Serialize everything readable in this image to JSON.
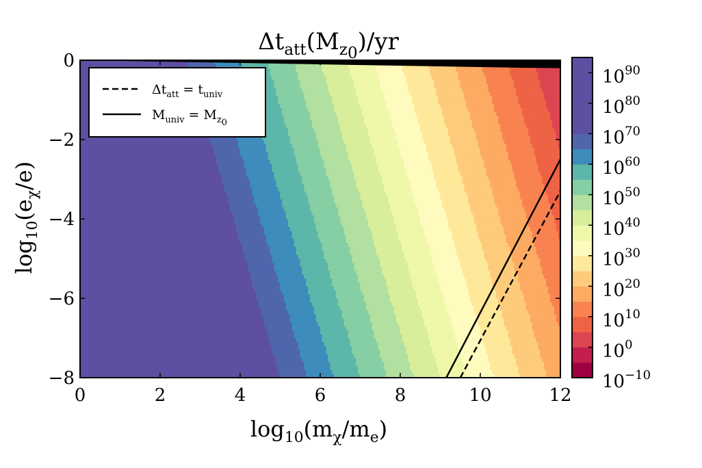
{
  "chart_data": {
    "type": "heatmap",
    "title": {
      "main": "Δt",
      "sub": "att",
      "mid": "(M",
      "sub2": "z",
      "sub2sub": "0",
      "tail": ")/yr"
    },
    "xlabel": {
      "pre": "log",
      "sub": "10",
      "mid": "(m",
      "sub2": "χ",
      "mid2": "/m",
      "sub3": "e",
      "tail": ")"
    },
    "ylabel": {
      "pre": "log",
      "sub": "10",
      "mid": "(e",
      "sub2": "χ",
      "tail": "/e)"
    },
    "xlim": [
      0,
      12
    ],
    "ylim": [
      -8,
      0
    ],
    "xticks": [
      {
        "value": 0,
        "label": "0"
      },
      {
        "value": 2,
        "label": "2"
      },
      {
        "value": 4,
        "label": "4"
      },
      {
        "value": 6,
        "label": "6"
      },
      {
        "value": 8,
        "label": "8"
      },
      {
        "value": 10,
        "label": "10"
      },
      {
        "value": 12,
        "label": "12"
      }
    ],
    "yticks": [
      {
        "value": 0,
        "label": "0"
      },
      {
        "value": -2,
        "label": "−2"
      },
      {
        "value": -4,
        "label": "−4"
      },
      {
        "value": -6,
        "label": "−6"
      },
      {
        "value": -8,
        "label": "−8"
      }
    ],
    "colorbar": {
      "scale": "log",
      "range_exponent": [
        -10,
        95
      ],
      "level_step": 5,
      "ticks": [
        {
          "exp": 90,
          "base": "10",
          "label": "90"
        },
        {
          "exp": 80,
          "base": "10",
          "label": "80"
        },
        {
          "exp": 70,
          "base": "10",
          "label": "70"
        },
        {
          "exp": 60,
          "base": "10",
          "label": "60"
        },
        {
          "exp": 50,
          "base": "10",
          "label": "50"
        },
        {
          "exp": 40,
          "base": "10",
          "label": "40"
        },
        {
          "exp": 30,
          "base": "10",
          "label": "30"
        },
        {
          "exp": 20,
          "base": "10",
          "label": "20"
        },
        {
          "exp": 10,
          "base": "10",
          "label": "10"
        },
        {
          "exp": 0,
          "base": "10",
          "label": "0"
        },
        {
          "exp": -10,
          "base": "10",
          "label": "−10"
        }
      ],
      "colors": [
        "#9e0142",
        "#c31e4c",
        "#dc4552",
        "#ee6245",
        "#f88350",
        "#fdab62",
        "#fdcb7b",
        "#fee89a",
        "#fffbbf",
        "#eff8a9",
        "#d8ee9b",
        "#b2e0a0",
        "#86cfa4",
        "#5cb7aa",
        "#3d8cbc",
        "#4f66ad",
        "#5e4fa2"
      ]
    },
    "field_model": "log10(Δt_att/yr) ≈ 90 − 7.5·log10(mχ/me) − 2.2·log10(eχ/e)",
    "excluded_region_color": "#000000",
    "lines": [
      {
        "name": "Δt_att = t_univ",
        "style": "dashed",
        "x": [
          9.5,
          12
        ],
        "y": [
          -8,
          -3.3
        ]
      },
      {
        "name": "M_univ = M_z0",
        "style": "solid",
        "x": [
          9.15,
          12
        ],
        "y": [
          -8,
          -2.5
        ]
      }
    ],
    "legend": {
      "position": "top-left",
      "entries": [
        {
          "style": "dashed",
          "lhs": "Δt",
          "lhs_sub": "att",
          "eq": " = t",
          "rhs_sub": "univ"
        },
        {
          "style": "solid",
          "lhs": "M",
          "lhs_sub": "univ",
          "eq": " = M",
          "rhs_sub": "z",
          "rhs_subsub": "0"
        }
      ]
    }
  }
}
